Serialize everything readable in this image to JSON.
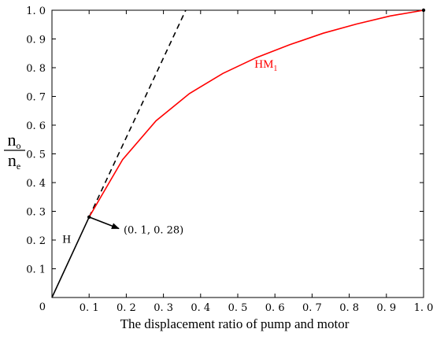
{
  "chart_data": {
    "type": "line",
    "xlabel": "The displacement ratio of pump and motor",
    "ylabel": {
      "numerator": "n",
      "numerator_sub": "o",
      "denominator": "n",
      "denominator_sub": "e"
    },
    "xlim": [
      0,
      1.0
    ],
    "ylim": [
      0,
      1.0
    ],
    "x_ticks": [
      {
        "v": 0.1,
        "label": "0. 1"
      },
      {
        "v": 0.2,
        "label": "0. 2"
      },
      {
        "v": 0.3,
        "label": "0. 3"
      },
      {
        "v": 0.4,
        "label": "0. 4"
      },
      {
        "v": 0.5,
        "label": "0. 5"
      },
      {
        "v": 0.6,
        "label": "0. 6"
      },
      {
        "v": 0.7,
        "label": "0. 7"
      },
      {
        "v": 0.8,
        "label": "0. 8"
      },
      {
        "v": 0.9,
        "label": "0. 9"
      },
      {
        "v": 1.0,
        "label": "1. 0"
      }
    ],
    "y_ticks": [
      {
        "v": 0.1,
        "label": "0. 1"
      },
      {
        "v": 0.2,
        "label": "0. 2"
      },
      {
        "v": 0.3,
        "label": "0. 3"
      },
      {
        "v": 0.4,
        "label": "0. 4"
      },
      {
        "v": 0.5,
        "label": "0. 5"
      },
      {
        "v": 0.6,
        "label": "0. 6"
      },
      {
        "v": 0.7,
        "label": "0. 7"
      },
      {
        "v": 0.8,
        "label": "0. 8"
      },
      {
        "v": 0.9,
        "label": "0. 9"
      },
      {
        "v": 1.0,
        "label": "1. 0"
      }
    ],
    "origin_label": "0",
    "grid": false,
    "series": [
      {
        "name": "H",
        "color": "#000000",
        "style": "solid",
        "x": [
          0,
          0.1
        ],
        "y": [
          0,
          0.28
        ]
      },
      {
        "name": "",
        "color": "#000000",
        "style": "dashed",
        "x": [
          0.1,
          0.36
        ],
        "y": [
          0.28,
          1.0
        ]
      },
      {
        "name": "HM",
        "name_sub": "1",
        "color": "#ff0000",
        "style": "solid",
        "x": [
          0.1,
          0.19,
          0.28,
          0.37,
          0.46,
          0.55,
          0.64,
          0.73,
          0.82,
          0.91,
          1.0
        ],
        "y": [
          0.28,
          0.48,
          0.615,
          0.71,
          0.78,
          0.835,
          0.88,
          0.92,
          0.952,
          0.98,
          1.0
        ]
      }
    ],
    "annotations": [
      {
        "text": "(0. 1, 0. 28)",
        "point": [
          0.1,
          0.28
        ],
        "target": [
          0.18,
          0.24
        ]
      }
    ]
  }
}
